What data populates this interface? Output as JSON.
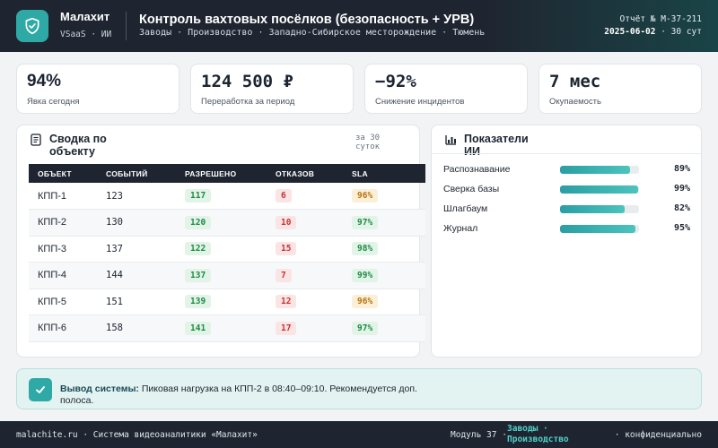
{
  "header": {
    "brand": "Малахит",
    "brand_sub": "VSaaS · ИИ",
    "title": "Контроль вахтовых посёлков (безопасность + УРВ)",
    "breadcrumbs": "Заводы · Производство · Западно-Сибирское месторождение · Тюмень",
    "report_id": "Отчёт № M-37-211",
    "report_date": "2025-06-02",
    "report_period": "· 30 сут"
  },
  "kpis": [
    {
      "value": "94%",
      "label": "Явка сегодня"
    },
    {
      "value": "124 500 ₽",
      "label": "Переработка за период"
    },
    {
      "value": "−92%",
      "label": "Снижение инцидентов"
    },
    {
      "value": "7 мес",
      "label": "Окупаемость"
    }
  ],
  "summary": {
    "title": "Сводка по объекту",
    "period": "за 30 суток",
    "columns": [
      "ОБЪЕКТ",
      "СОБЫТИЙ",
      "РАЗРЕШЕНО",
      "ОТКАЗОВ",
      "SLA"
    ],
    "rows": [
      {
        "object": "КПП-1",
        "events": "123",
        "allowed": "117",
        "denied": "6",
        "sla": "96%",
        "sla_color": "amber"
      },
      {
        "object": "КПП-2",
        "events": "130",
        "allowed": "120",
        "denied": "10",
        "sla": "97%",
        "sla_color": "green"
      },
      {
        "object": "КПП-3",
        "events": "137",
        "allowed": "122",
        "denied": "15",
        "sla": "98%",
        "sla_color": "green"
      },
      {
        "object": "КПП-4",
        "events": "144",
        "allowed": "137",
        "denied": "7",
        "sla": "99%",
        "sla_color": "green"
      },
      {
        "object": "КПП-5",
        "events": "151",
        "allowed": "139",
        "denied": "12",
        "sla": "96%",
        "sla_color": "amber"
      },
      {
        "object": "КПП-6",
        "events": "158",
        "allowed": "141",
        "denied": "17",
        "sla": "97%",
        "sla_color": "green"
      }
    ]
  },
  "ai_metrics": {
    "title": "Показатели ИИ",
    "items": [
      {
        "label": "Распознавание",
        "value": 89,
        "display": "89%"
      },
      {
        "label": "Сверка базы",
        "value": 99,
        "display": "99%"
      },
      {
        "label": "Шлагбаум",
        "value": 82,
        "display": "82%"
      },
      {
        "label": "Журнал",
        "value": 95,
        "display": "95%"
      }
    ]
  },
  "conclusion": {
    "label": "Вывод системы:",
    "text": "Пиковая нагрузка на КПП-2 в 08:40–09:10. Рекомендуется доп. полоса."
  },
  "footer": {
    "left": "malachite.ru · Система видеоаналитики «Малахит»",
    "module": "Модуль 37 ·",
    "link": "Заводы · Производство",
    "right": "· конфиденциально"
  },
  "colors": {
    "accent": "#2fa9a6",
    "dark": "#1f2530",
    "ok": "#1f8a43",
    "bad": "#c43434",
    "warn": "#b9730c"
  }
}
